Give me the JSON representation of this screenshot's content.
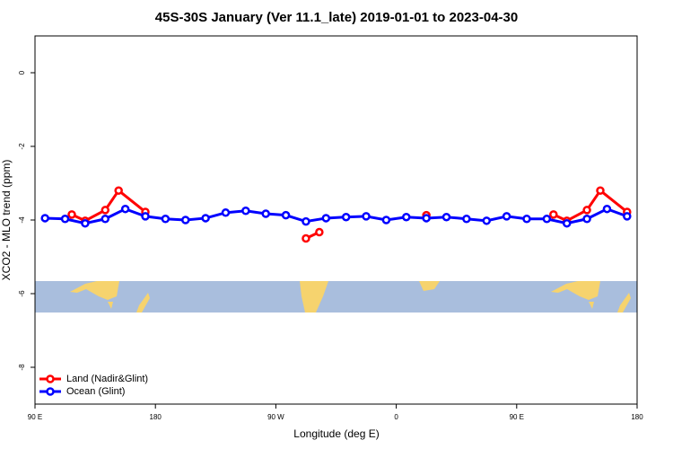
{
  "chart_data": {
    "type": "line",
    "title": "45S-30S January (Ver 11.1_late)   2019-01-01 to 2023-04-30",
    "x_label": "Longitude (deg E)",
    "y_label": "XCO2 - MLO trend (ppm)",
    "xlim": [
      90,
      540
    ],
    "xticks": [
      {
        "value": 90,
        "label": "90 E"
      },
      180,
      {
        "value": 270,
        "label": "90 W"
      },
      {
        "value": 360,
        "label": "0"
      },
      {
        "value": 450,
        "label": "90 E"
      },
      {
        "value": 540,
        "label": "180"
      }
    ],
    "ylim": [
      -9,
      1
    ],
    "yticks": [
      -8,
      -6,
      -4,
      -2,
      0
    ],
    "legend": "bottom-left",
    "series": [
      {
        "name": "Land (Nadir&Glint)",
        "color": "#ff0000",
        "x": [
          117.5,
          127.5,
          142.5,
          152.5,
          172.5,
          187.5,
          292.5,
          302.5,
          367.5,
          382.5,
          397.5,
          477.5,
          487.5,
          502.5,
          512.5,
          532.5
        ],
        "values": [
          -3.85,
          -4.02,
          -3.73,
          -3.2,
          -3.78,
          null,
          -4.5,
          -4.33,
          null,
          -3.87,
          null,
          -3.85,
          -4.02,
          -3.73,
          -3.2,
          -3.78
        ]
      },
      {
        "name": "Ocean (Glint)",
        "color": "#0000ff",
        "x": [
          97.5,
          112.5,
          127.5,
          142.5,
          157.5,
          172.5,
          187.5,
          202.5,
          217.5,
          232.5,
          247.5,
          262.5,
          277.5,
          292.5,
          307.5,
          322.5,
          337.5,
          352.5,
          367.5,
          382.5,
          397.5,
          412.5,
          427.5,
          442.5,
          457.5,
          472.5,
          487.5,
          502.5,
          517.5,
          532.5
        ],
        "values": [
          -3.95,
          -3.97,
          -4.09,
          -3.97,
          -3.7,
          -3.9,
          -3.97,
          -4.0,
          -3.95,
          -3.8,
          -3.75,
          -3.83,
          -3.87,
          -4.04,
          -3.95,
          -3.92,
          -3.9,
          -4.0,
          -3.92,
          -3.95,
          -3.92,
          -3.97,
          -4.02,
          -3.9,
          -3.97,
          -3.97,
          -4.09,
          -3.97,
          -3.7,
          -3.9
        ]
      }
    ]
  }
}
